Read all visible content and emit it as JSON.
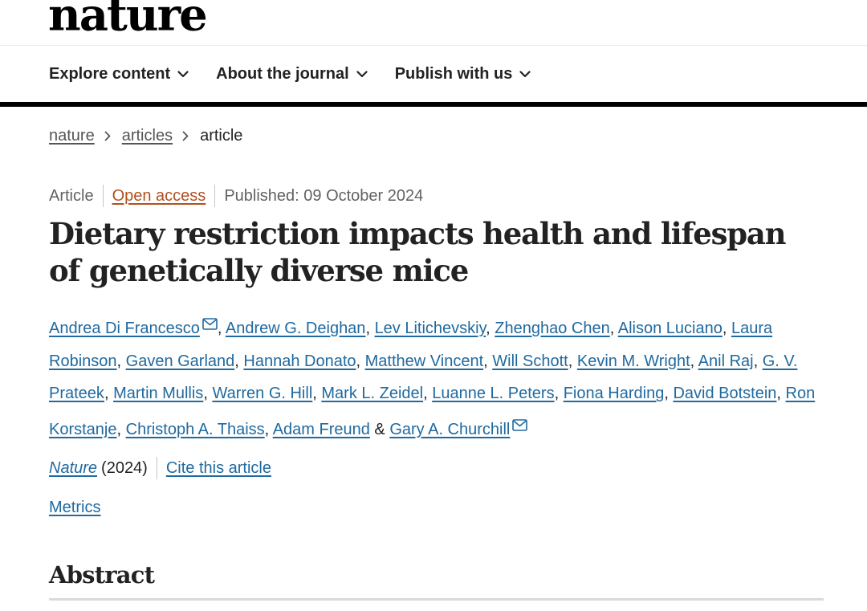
{
  "header": {
    "logo": "nature",
    "nav": [
      {
        "label": "Explore content",
        "icon": "chevron-down-icon"
      },
      {
        "label": "About the journal",
        "icon": "chevron-down-icon"
      },
      {
        "label": "Publish with us",
        "icon": "chevron-down-icon"
      }
    ]
  },
  "breadcrumb": {
    "items": [
      "nature",
      "articles"
    ],
    "current": "article",
    "separator_icon": "chevron-right-icon"
  },
  "article": {
    "type": "Article",
    "access": "Open access",
    "published": "Published: 09 October 2024",
    "title": "Dietary restriction impacts health and lifespan of genetically diverse mice",
    "authors": [
      {
        "name": "Andrea Di Francesco",
        "email_icon": true,
        "after": ", "
      },
      {
        "name": "Andrew G. Deighan",
        "email_icon": false,
        "after": ", "
      },
      {
        "name": "Lev Litichevskiy",
        "email_icon": false,
        "after": ", "
      },
      {
        "name": "Zhenghao Chen",
        "email_icon": false,
        "after": ", "
      },
      {
        "name": "Alison Luciano",
        "email_icon": false,
        "after": ", "
      },
      {
        "name": "Laura Robinson",
        "email_icon": false,
        "after": ", "
      },
      {
        "name": "Gaven Garland",
        "email_icon": false,
        "after": ", "
      },
      {
        "name": "Hannah Donato",
        "email_icon": false,
        "after": ", "
      },
      {
        "name": "Matthew Vincent",
        "email_icon": false,
        "after": ", "
      },
      {
        "name": "Will Schott",
        "email_icon": false,
        "after": ", "
      },
      {
        "name": "Kevin M. Wright",
        "email_icon": false,
        "after": ", "
      },
      {
        "name": "Anil Raj",
        "email_icon": false,
        "after": ", "
      },
      {
        "name": "G. V. Prateek",
        "email_icon": false,
        "after": ", "
      },
      {
        "name": "Martin Mullis",
        "email_icon": false,
        "after": ", "
      },
      {
        "name": "Warren G. Hill",
        "email_icon": false,
        "after": ", "
      },
      {
        "name": "Mark L. Zeidel",
        "email_icon": false,
        "after": ", "
      },
      {
        "name": "Luanne L. Peters",
        "email_icon": false,
        "after": ", "
      },
      {
        "name": "Fiona Harding",
        "email_icon": false,
        "after": ", "
      },
      {
        "name": "David Botstein",
        "email_icon": false,
        "after": ", "
      },
      {
        "name": "Ron Korstanje",
        "email_icon": false,
        "after": ", "
      },
      {
        "name": "Christoph A. Thaiss",
        "email_icon": false,
        "after": ", "
      },
      {
        "name": "Adam Freund",
        "email_icon": false,
        "after": " & "
      },
      {
        "name": "Gary A. Churchill",
        "email_icon": true,
        "after": ""
      }
    ],
    "journal": "Nature",
    "year": "(2024)",
    "cite": "Cite this article",
    "metrics": "Metrics",
    "abstract_heading": "Abstract"
  },
  "colors": {
    "link": "#206aa0",
    "open_access": "#b2501e",
    "text": "#222222",
    "meta": "#626262"
  }
}
